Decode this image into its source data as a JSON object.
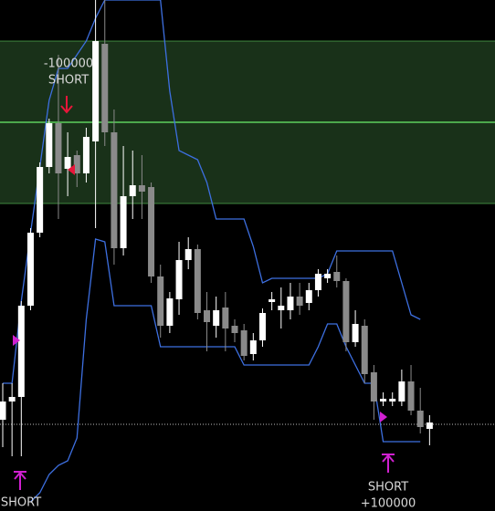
{
  "chart_data": {
    "type": "candlestick",
    "ylim": [
      0,
      560
    ],
    "up_color": "#ffffff",
    "down_color": "#8a8a8a",
    "open": [
      100,
      120,
      125,
      225,
      305,
      377,
      425,
      375,
      390,
      370,
      405,
      512,
      415,
      288,
      345,
      357,
      355,
      257,
      203,
      232,
      275,
      287,
      220,
      203,
      223,
      203,
      198,
      172,
      187,
      229,
      220,
      220,
      235,
      228,
      242,
      255,
      262,
      252,
      185,
      203,
      152,
      120,
      120,
      120,
      142,
      110,
      90
    ],
    "close": [
      120,
      125,
      225,
      305,
      377,
      425,
      370,
      388,
      370,
      410,
      515,
      415,
      288,
      345,
      357,
      350,
      257,
      203,
      233,
      275,
      287,
      217,
      207,
      220,
      200,
      195,
      170,
      187,
      217,
      232,
      225,
      235,
      225,
      242,
      260,
      260,
      252,
      185,
      205,
      150,
      120,
      123,
      123,
      142,
      110,
      92,
      97
    ],
    "high": [
      140,
      140,
      230,
      310,
      382,
      430,
      500,
      415,
      395,
      420,
      560,
      560,
      440,
      400,
      395,
      390,
      360,
      270,
      240,
      295,
      300,
      292,
      240,
      235,
      240,
      210,
      205,
      195,
      222,
      240,
      245,
      250,
      250,
      250,
      265,
      265,
      280,
      255,
      220,
      210,
      160,
      130,
      130,
      155,
      160,
      135,
      105
    ],
    "low": [
      70,
      60,
      60,
      220,
      300,
      370,
      320,
      345,
      355,
      360,
      310,
      400,
      270,
      280,
      320,
      320,
      250,
      190,
      195,
      215,
      265,
      210,
      175,
      190,
      175,
      185,
      165,
      165,
      180,
      220,
      200,
      210,
      215,
      220,
      235,
      250,
      245,
      175,
      180,
      140,
      100,
      115,
      115,
      115,
      105,
      85,
      72
    ],
    "series": [
      {
        "color": "#3d6fe0",
        "values": [
          140,
          140,
          230,
          305,
          377,
          450,
          485,
          485,
          500,
          515,
          540,
          560,
          560,
          560,
          560,
          560,
          560,
          560,
          460,
          395,
          390,
          385,
          360,
          320,
          320,
          320,
          320,
          290,
          250,
          255,
          255,
          255,
          255,
          255,
          255,
          260,
          285,
          285,
          285,
          285,
          285,
          285,
          285,
          250,
          215,
          210,
          null
        ]
      },
      {
        "color": "#3d6fe0",
        "values": [
          null,
          null,
          null,
          10,
          20,
          40,
          50,
          55,
          80,
          210,
          298,
          295,
          225,
          225,
          225,
          225,
          225,
          180,
          180,
          180,
          180,
          180,
          180,
          180,
          180,
          180,
          160,
          160,
          160,
          160,
          160,
          160,
          160,
          160,
          180,
          205,
          205,
          180,
          160,
          140,
          140,
          76,
          76,
          76,
          76,
          76,
          null
        ]
      }
    ],
    "zone": {
      "low": 337,
      "high": 515,
      "line": 426,
      "color": "#1d3a1d",
      "line_color": "#5ecf5e"
    },
    "price_line": 95,
    "annotations": [
      {
        "lines": [
          "-100000",
          "SHORT"
        ]
      },
      {
        "lines": [
          "SHORT"
        ]
      },
      {
        "lines": [
          "SHORT",
          "+100000"
        ]
      }
    ]
  }
}
